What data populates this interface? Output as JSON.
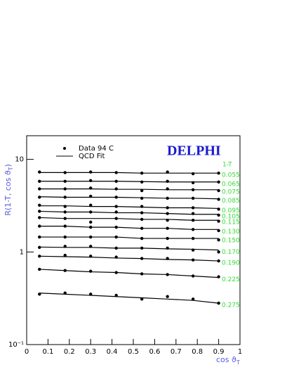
{
  "chart_data": {
    "type": "scatter",
    "annotation": "DELPHI",
    "legend": [
      "Data 94 C",
      "QCD Fit"
    ],
    "series_header": "1-T",
    "y_label": {
      "main": "R(1-T, cos ϑ",
      "sub": "T",
      "end": ")"
    },
    "x_label": {
      "main": "cos ϑ",
      "sub": "T"
    },
    "log_y": true,
    "xlim": [
      0,
      1
    ],
    "ylim": [
      0.1,
      18
    ],
    "xticks": [
      0,
      0.1,
      0.2,
      0.3,
      0.4,
      0.5,
      0.6,
      0.7,
      0.8,
      0.9,
      1
    ],
    "yticks": [
      {
        "value": 0.1,
        "label": "10⁻¹"
      },
      1,
      10
    ],
    "marker_color": "#000000",
    "label_color": "#33dd33",
    "x": [
      0.06,
      0.18,
      0.3,
      0.42,
      0.54,
      0.66,
      0.78,
      0.9
    ],
    "series": [
      {
        "name": "0.055",
        "values": [
          7.3,
          7.2,
          7.3,
          7.2,
          7.1,
          7.3,
          7.0,
          7.1
        ],
        "fit": [
          7.2,
          7.2,
          7.2,
          7.2,
          7.1,
          7.1,
          7.1,
          7.1
        ]
      },
      {
        "name": "0.065",
        "values": [
          5.8,
          5.8,
          5.9,
          5.8,
          5.7,
          5.8,
          5.6,
          5.7
        ],
        "fit": [
          5.8,
          5.8,
          5.8,
          5.8,
          5.75,
          5.7,
          5.7,
          5.7
        ]
      },
      {
        "name": "0.075",
        "values": [
          4.8,
          4.8,
          4.9,
          4.8,
          4.6,
          4.8,
          4.7,
          4.6
        ],
        "fit": [
          4.8,
          4.8,
          4.8,
          4.75,
          4.75,
          4.7,
          4.7,
          4.7
        ]
      },
      {
        "name": "0.085",
        "values": [
          3.9,
          3.9,
          4.0,
          3.9,
          3.8,
          3.8,
          3.8,
          3.7
        ],
        "fit": [
          3.95,
          3.9,
          3.9,
          3.9,
          3.85,
          3.8,
          3.8,
          3.75
        ]
      },
      {
        "name": "0.095",
        "values": [
          3.2,
          3.1,
          3.2,
          3.1,
          3.1,
          3.0,
          3.0,
          2.9
        ],
        "fit": [
          3.15,
          3.15,
          3.1,
          3.1,
          3.05,
          3.0,
          3.0,
          2.95
        ]
      },
      {
        "name": "0.105",
        "values": [
          2.75,
          2.7,
          2.7,
          2.7,
          2.65,
          2.6,
          2.6,
          2.5
        ],
        "fit": [
          2.75,
          2.7,
          2.7,
          2.65,
          2.65,
          2.6,
          2.55,
          2.55
        ]
      },
      {
        "name": "0.115",
        "values": [
          2.35,
          2.3,
          2.1,
          2.3,
          2.25,
          2.2,
          2.2,
          2.15
        ],
        "fit": [
          2.35,
          2.3,
          2.3,
          2.3,
          2.25,
          2.25,
          2.2,
          2.2
        ]
      },
      {
        "name": "0.130",
        "values": [
          1.9,
          1.9,
          1.85,
          1.85,
          1.8,
          1.8,
          1.75,
          1.7
        ],
        "fit": [
          1.9,
          1.9,
          1.85,
          1.85,
          1.8,
          1.8,
          1.75,
          1.75
        ]
      },
      {
        "name": "0.150",
        "values": [
          1.45,
          1.45,
          1.45,
          1.45,
          1.4,
          1.4,
          1.4,
          1.35
        ],
        "fit": [
          1.45,
          1.45,
          1.45,
          1.45,
          1.4,
          1.4,
          1.4,
          1.4
        ]
      },
      {
        "name": "0.170",
        "values": [
          1.12,
          1.15,
          1.15,
          1.1,
          1.1,
          1.1,
          1.05,
          1.0
        ],
        "fit": [
          1.13,
          1.12,
          1.12,
          1.1,
          1.1,
          1.08,
          1.07,
          1.05
        ]
      },
      {
        "name": "0.190",
        "values": [
          0.9,
          0.92,
          0.9,
          0.88,
          0.85,
          0.85,
          0.82,
          0.8
        ],
        "fit": [
          0.9,
          0.89,
          0.88,
          0.86,
          0.85,
          0.83,
          0.82,
          0.8
        ]
      },
      {
        "name": "0.225",
        "values": [
          0.65,
          0.63,
          0.62,
          0.6,
          0.58,
          0.57,
          0.55,
          0.54
        ],
        "fit": [
          0.65,
          0.63,
          0.61,
          0.6,
          0.58,
          0.57,
          0.55,
          0.53
        ]
      },
      {
        "name": "0.275",
        "values": [
          0.35,
          0.36,
          0.35,
          0.34,
          0.31,
          0.33,
          0.31,
          0.28
        ],
        "fit": [
          0.36,
          0.35,
          0.34,
          0.33,
          0.32,
          0.31,
          0.3,
          0.28
        ]
      }
    ]
  }
}
